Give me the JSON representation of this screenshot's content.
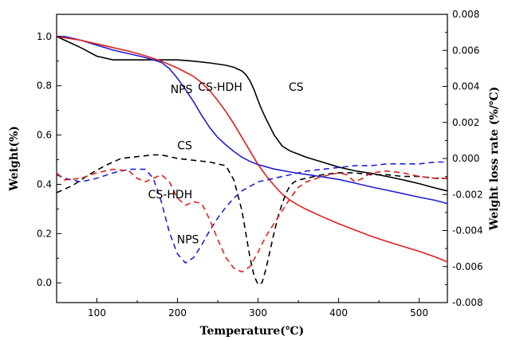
{
  "chart_data": {
    "type": "line",
    "xlabel": "Temperature(℃)",
    "ylabel": "Weight(%)",
    "y2label": "Weight loss rate (%/℃)",
    "xlim": [
      50,
      535
    ],
    "ylim": [
      -0.08,
      1.09
    ],
    "y2lim": [
      -0.008,
      0.008
    ],
    "xticks": [
      100,
      200,
      300,
      400,
      500
    ],
    "yticks": [
      0.0,
      0.2,
      0.4,
      0.6,
      0.8,
      1.0
    ],
    "y2ticks": [
      -0.008,
      -0.006,
      -0.004,
      -0.002,
      0.0,
      0.002,
      0.004,
      0.006,
      0.008
    ],
    "xtick_labels": [
      "100",
      "200",
      "300",
      "400",
      "500"
    ],
    "ytick_labels": [
      "0.0",
      "0.2",
      "0.4",
      "0.6",
      "0.8",
      "1.0"
    ],
    "y2tick_labels": [
      "-0.008",
      "-0.006",
      "-0.004",
      "-0.002",
      "0.000",
      "0.002",
      "0.004",
      "0.006",
      "0.008"
    ],
    "grid": false,
    "series": [
      {
        "name": "CS",
        "kind": "weight",
        "axis": "left",
        "color": "#000000",
        "dash": "solid",
        "x": [
          50,
          60,
          80,
          100,
          120,
          140,
          160,
          180,
          200,
          220,
          240,
          260,
          270,
          280,
          285,
          290,
          295,
          300,
          305,
          310,
          320,
          330,
          340,
          360,
          380,
          400,
          420,
          440,
          460,
          480,
          500,
          520,
          535
        ],
        "y": [
          1.0,
          0.985,
          0.955,
          0.92,
          0.905,
          0.905,
          0.905,
          0.905,
          0.905,
          0.9,
          0.893,
          0.883,
          0.875,
          0.86,
          0.845,
          0.82,
          0.785,
          0.74,
          0.7,
          0.665,
          0.6,
          0.555,
          0.535,
          0.51,
          0.49,
          0.47,
          0.455,
          0.445,
          0.432,
          0.418,
          0.403,
          0.385,
          0.373
        ]
      },
      {
        "name": "NPS",
        "kind": "weight",
        "axis": "left",
        "color": "#2020d0",
        "dash": "solid",
        "x": [
          50,
          60,
          80,
          100,
          120,
          140,
          160,
          180,
          190,
          200,
          210,
          220,
          230,
          240,
          250,
          260,
          270,
          280,
          290,
          300,
          320,
          340,
          360,
          380,
          400,
          420,
          440,
          460,
          480,
          500,
          520,
          535
        ],
        "y": [
          1.0,
          1.0,
          0.985,
          0.965,
          0.945,
          0.93,
          0.915,
          0.895,
          0.87,
          0.83,
          0.785,
          0.735,
          0.68,
          0.63,
          0.59,
          0.56,
          0.533,
          0.51,
          0.493,
          0.48,
          0.462,
          0.45,
          0.44,
          0.43,
          0.42,
          0.405,
          0.39,
          0.376,
          0.362,
          0.348,
          0.335,
          0.322
        ]
      },
      {
        "name": "CS-HDH",
        "kind": "weight",
        "axis": "left",
        "color": "#e0201b",
        "dash": "solid",
        "x": [
          50,
          60,
          80,
          100,
          120,
          140,
          160,
          180,
          200,
          220,
          230,
          240,
          250,
          260,
          270,
          280,
          290,
          300,
          310,
          320,
          330,
          340,
          350,
          360,
          380,
          400,
          420,
          440,
          460,
          480,
          500,
          520,
          535
        ],
        "y": [
          1.0,
          0.995,
          0.985,
          0.97,
          0.955,
          0.94,
          0.922,
          0.9,
          0.872,
          0.838,
          0.812,
          0.78,
          0.74,
          0.695,
          0.645,
          0.59,
          0.535,
          0.48,
          0.435,
          0.395,
          0.36,
          0.335,
          0.315,
          0.298,
          0.268,
          0.24,
          0.215,
          0.19,
          0.168,
          0.148,
          0.128,
          0.105,
          0.085
        ]
      },
      {
        "name": "CS",
        "kind": "dtg",
        "axis": "right",
        "color": "#000000",
        "dash": "dashed",
        "x": [
          50,
          70,
          90,
          110,
          130,
          150,
          170,
          180,
          190,
          200,
          220,
          240,
          260,
          270,
          280,
          285,
          290,
          295,
          300,
          305,
          310,
          315,
          320,
          325,
          330,
          335,
          340,
          345,
          350,
          360,
          380,
          400,
          420,
          440,
          460,
          480,
          500,
          520,
          535
        ],
        "y": [
          -0.0019,
          -0.0015,
          -0.0009,
          -0.0004,
          0.0,
          0.0001,
          0.0002,
          0.0002,
          0.0001,
          0.0,
          -0.0001,
          -0.0002,
          -0.0004,
          -0.0012,
          -0.0029,
          -0.0042,
          -0.0055,
          -0.0065,
          -0.007,
          -0.0069,
          -0.0061,
          -0.0051,
          -0.0041,
          -0.0032,
          -0.0025,
          -0.0019,
          -0.0015,
          -0.0013,
          -0.0012,
          -0.0011,
          -0.0009,
          -0.0008,
          -0.0008,
          -0.0009,
          -0.0009,
          -0.001,
          -0.001,
          -0.0011,
          -0.0011
        ]
      },
      {
        "name": "NPS",
        "kind": "dtg",
        "axis": "right",
        "color": "#2020d0",
        "dash": "dashed",
        "x": [
          50,
          60,
          80,
          100,
          120,
          140,
          160,
          170,
          180,
          190,
          200,
          210,
          220,
          230,
          240,
          250,
          260,
          270,
          280,
          300,
          320,
          340,
          360,
          380,
          400,
          420,
          440,
          460,
          480,
          500,
          520,
          535
        ],
        "y": [
          -0.0009,
          -0.0011,
          -0.0013,
          -0.0011,
          -0.0008,
          -0.0006,
          -0.0006,
          -0.0011,
          -0.0024,
          -0.0041,
          -0.0053,
          -0.0058,
          -0.0055,
          -0.0048,
          -0.004,
          -0.0033,
          -0.0027,
          -0.0022,
          -0.0018,
          -0.0013,
          -0.0011,
          -0.0009,
          -0.0007,
          -0.0006,
          -0.0005,
          -0.0004,
          -0.0004,
          -0.0003,
          -0.0003,
          -0.0003,
          -0.0002,
          -0.0002
        ]
      },
      {
        "name": "CS-HDH",
        "kind": "dtg",
        "axis": "right",
        "color": "#e0201b",
        "dash": "dashed",
        "x": [
          50,
          60,
          80,
          100,
          120,
          140,
          150,
          160,
          170,
          180,
          190,
          200,
          210,
          220,
          230,
          240,
          250,
          260,
          270,
          280,
          290,
          300,
          310,
          320,
          330,
          340,
          350,
          360,
          380,
          400,
          410,
          420,
          430,
          440,
          460,
          480,
          500,
          520,
          535
        ],
        "y": [
          -0.0008,
          -0.0012,
          -0.0011,
          -0.0008,
          -0.0006,
          -0.0007,
          -0.0011,
          -0.0013,
          -0.0011,
          -0.0009,
          -0.0013,
          -0.0022,
          -0.0026,
          -0.0024,
          -0.0025,
          -0.0034,
          -0.0045,
          -0.0055,
          -0.0061,
          -0.0063,
          -0.006,
          -0.0052,
          -0.0043,
          -0.0036,
          -0.0029,
          -0.0022,
          -0.0016,
          -0.0013,
          -0.001,
          -0.0008,
          -0.0009,
          -0.0013,
          -0.0011,
          -0.0008,
          -0.0007,
          -0.0008,
          -0.001,
          -0.0011,
          -0.0011
        ]
      }
    ],
    "annotations": [
      {
        "text": "CS",
        "x": 338,
        "y": 0.78,
        "axis": "left",
        "anchor": "start"
      },
      {
        "text": "CS-HDH",
        "x": 253,
        "y": 0.78,
        "axis": "left",
        "anchor": "middle"
      },
      {
        "text": "NPS",
        "x": 205,
        "y": 0.77,
        "axis": "left",
        "anchor": "middle"
      },
      {
        "text": "CS",
        "x": 209,
        "y": 0.0005,
        "axis": "right",
        "anchor": "middle"
      },
      {
        "text": "CS-HDH",
        "x": 191,
        "y": -0.0022,
        "axis": "right",
        "anchor": "middle"
      },
      {
        "text": "NPS",
        "x": 213,
        "y": -0.0047,
        "axis": "right",
        "anchor": "middle"
      }
    ]
  }
}
